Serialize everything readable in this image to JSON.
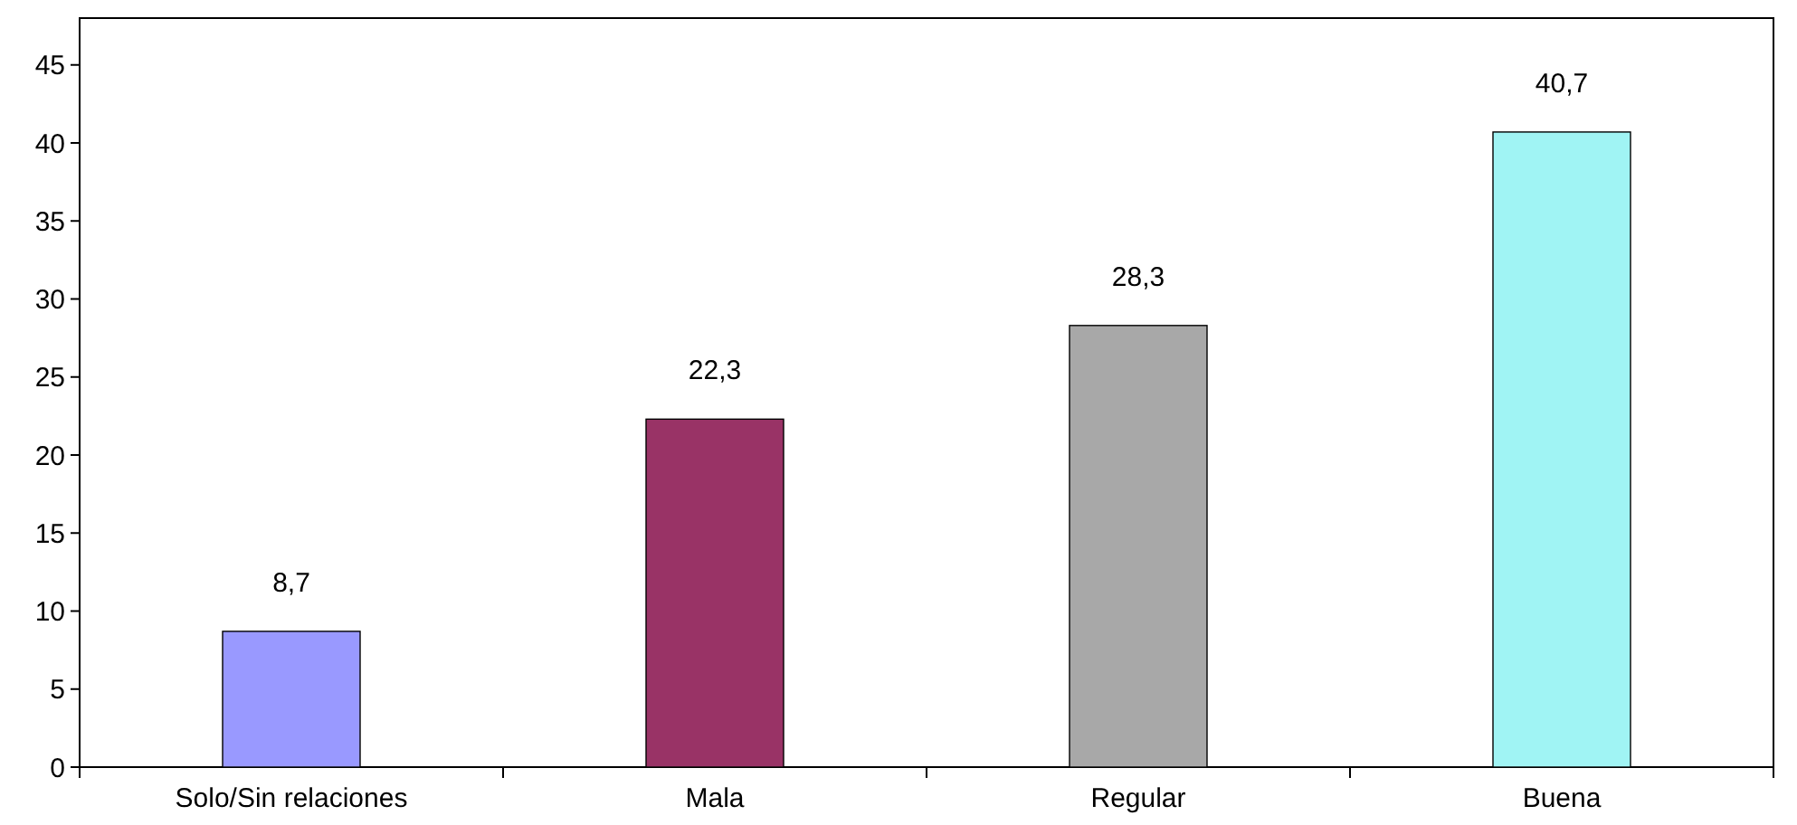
{
  "chart_data": {
    "type": "bar",
    "categories": [
      "Solo/Sin relaciones",
      "Mala",
      "Regular",
      "Buena"
    ],
    "values": [
      8.7,
      22.3,
      28.3,
      40.7
    ],
    "colors": [
      "#9999ff",
      "#993366",
      "#a8a8a8",
      "#a0f4f4"
    ],
    "value_labels": [
      "8,7",
      "22,3",
      "28,3",
      "40,7"
    ],
    "ylim": [
      0,
      48
    ],
    "yticks": [
      0,
      5,
      10,
      15,
      20,
      25,
      30,
      35,
      40,
      45
    ]
  }
}
